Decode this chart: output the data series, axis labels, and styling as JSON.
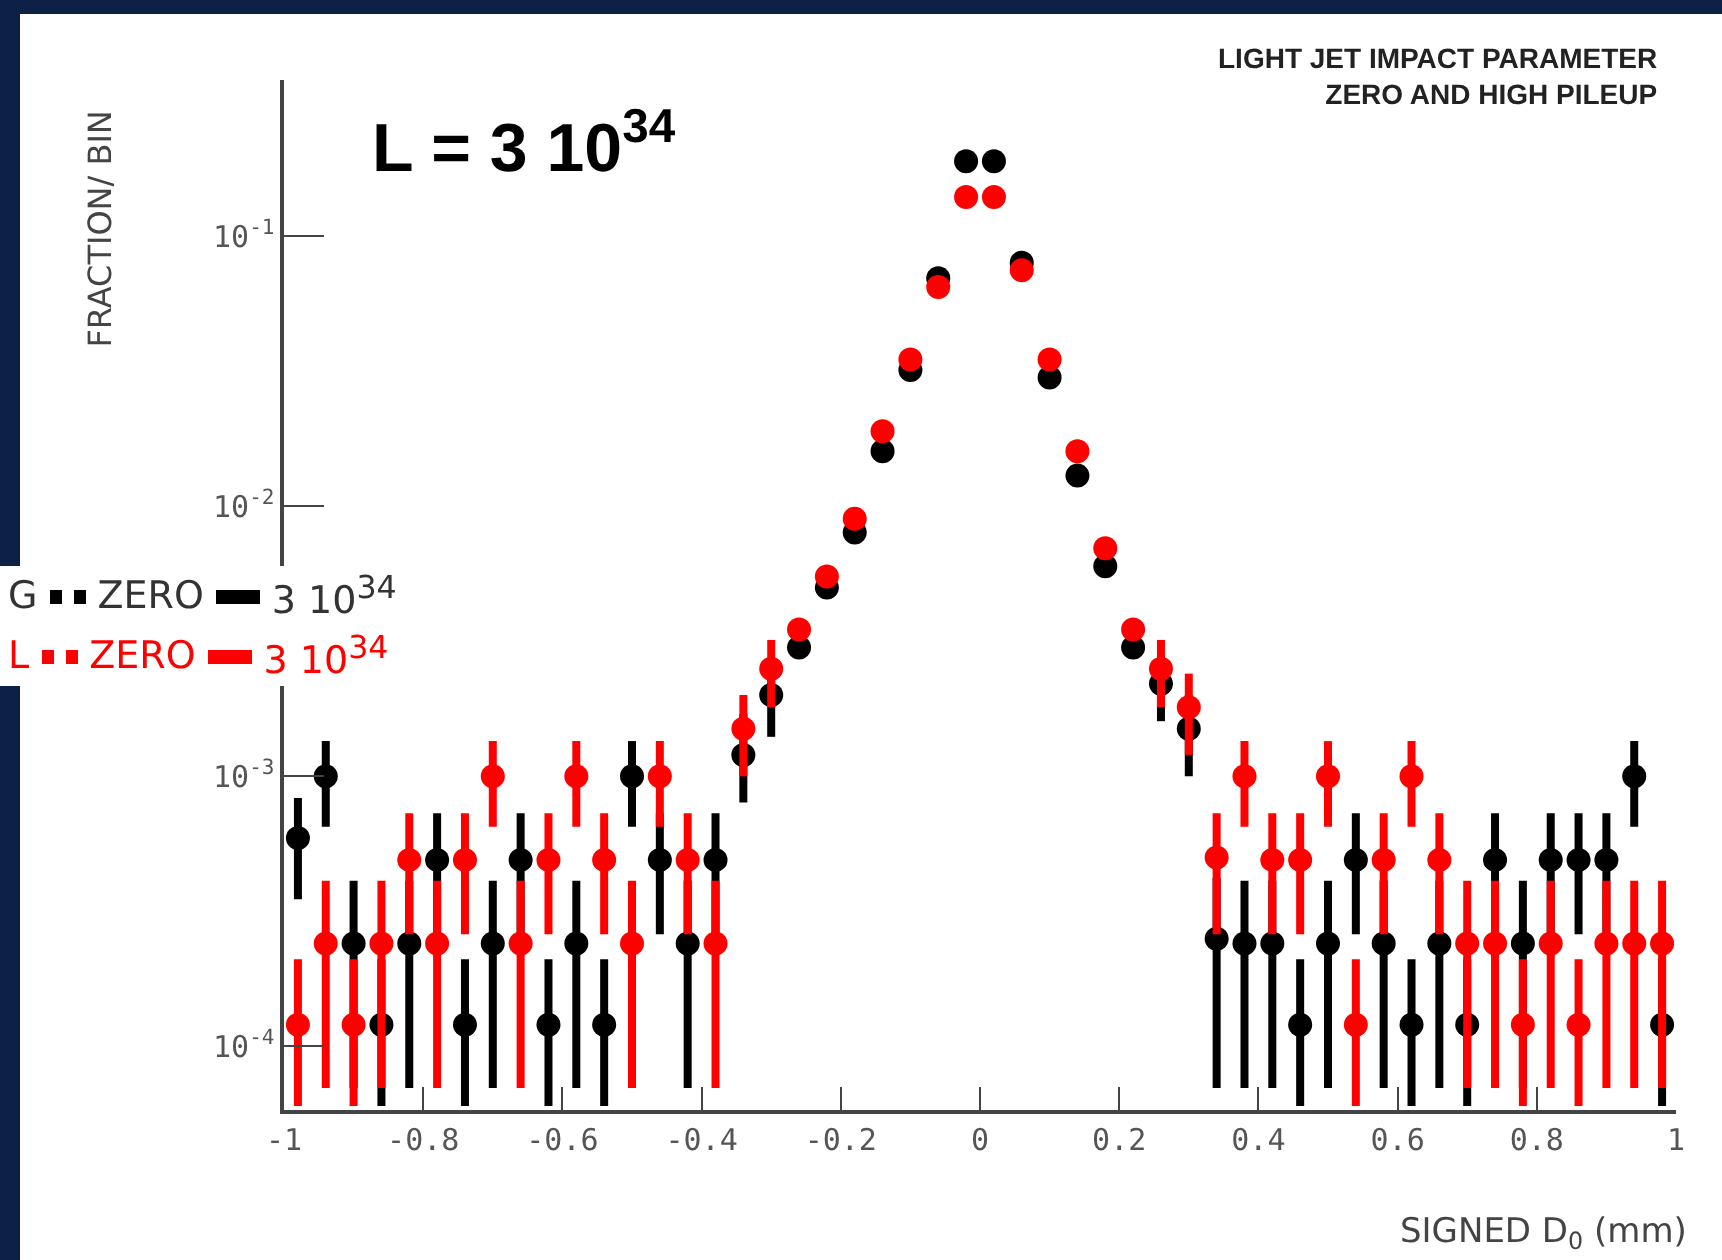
{
  "chart_data": {
    "type": "scatter",
    "title": "LIGHT JET IMPACT PARAMETER\nZERO AND HIGH PILEUP",
    "xlabel": "SIGNED D$_{0}$ (mm)",
    "ylabel": "FRACTION/ BIN",
    "annotations": [
      "L = 3 10$^{34}$",
      "G",
      "ZERO",
      "3 10$^{34}$",
      "L",
      "ZERO",
      "3 10$^{34}$"
    ],
    "x": [
      -0.98,
      -0.94,
      -0.9,
      -0.86,
      -0.82,
      -0.78,
      -0.74,
      -0.7,
      -0.66,
      -0.62,
      -0.58,
      -0.54,
      -0.5,
      -0.46,
      -0.42,
      -0.38,
      -0.34,
      -0.3,
      -0.26,
      -0.22,
      -0.18,
      -0.14,
      -0.1,
      -0.06,
      -0.02,
      0.02,
      0.06,
      0.1,
      0.14,
      0.18,
      0.22,
      0.26,
      0.3,
      0.34,
      0.38,
      0.42,
      0.46,
      0.5,
      0.54,
      0.58,
      0.62,
      0.66,
      0.7,
      0.74,
      0.78,
      0.82,
      0.86,
      0.9,
      0.94,
      0.98
    ],
    "series": [
      {
        "color": "#000000",
        "values": [
          0.00059,
          0.001,
          0.00024,
          0.00012,
          0.00024,
          0.00049,
          0.00012,
          0.00024,
          0.00049,
          0.00012,
          0.00024,
          0.00012,
          0.001,
          0.00049,
          0.00024,
          0.00049,
          0.0012,
          0.002,
          0.003,
          0.005,
          0.008,
          0.016,
          0.032,
          0.07,
          0.19,
          0.19,
          0.08,
          0.03,
          0.013,
          0.006,
          0.003,
          0.0022,
          0.0015,
          0.00025,
          0.00024,
          0.00024,
          0.00012,
          0.00024,
          0.00049,
          0.00024,
          0.00012,
          0.00024,
          0.00012,
          0.00049,
          0.00024,
          0.00049,
          0.00049,
          0.00049,
          0.001,
          0.00012
        ],
        "errors": [
          [
            0.00035,
            0.00083
          ],
          [
            0.00065,
            0.00135
          ],
          [
            7e-05,
            0.00041
          ],
          [
            6e-05,
            0.00021
          ],
          [
            7e-05,
            0.00041
          ],
          [
            0.00026,
            0.00073
          ],
          [
            6e-05,
            0.00021
          ],
          [
            7e-05,
            0.00041
          ],
          [
            0.00026,
            0.00073
          ],
          [
            6e-05,
            0.00021
          ],
          [
            7e-05,
            0.00041
          ],
          [
            6e-05,
            0.00021
          ],
          [
            0.00065,
            0.00135
          ],
          [
            0.00026,
            0.00073
          ],
          [
            7e-05,
            0.00041
          ],
          [
            0.00026,
            0.00073
          ],
          [
            0.0008,
            0.0017
          ],
          [
            0.0014,
            0.0026
          ],
          null,
          null,
          null,
          null,
          null,
          null,
          null,
          null,
          null,
          null,
          null,
          null,
          null,
          [
            0.0016,
            0.0028
          ],
          [
            0.001,
            0.002
          ],
          [
            7e-05,
            0.00042
          ],
          [
            7e-05,
            0.00041
          ],
          [
            7e-05,
            0.00041
          ],
          [
            6e-05,
            0.00021
          ],
          [
            7e-05,
            0.00041
          ],
          [
            0.00026,
            0.00073
          ],
          [
            7e-05,
            0.00041
          ],
          [
            6e-05,
            0.00021
          ],
          [
            7e-05,
            0.00041
          ],
          [
            6e-05,
            0.00021
          ],
          [
            0.00026,
            0.00073
          ],
          [
            7e-05,
            0.00041
          ],
          [
            0.00026,
            0.00073
          ],
          [
            0.00026,
            0.00073
          ],
          [
            0.00026,
            0.00073
          ],
          [
            0.00065,
            0.00135
          ],
          [
            6e-05,
            0.00021
          ]
        ]
      },
      {
        "color": "#ff0000",
        "values": [
          0.00012,
          0.00024,
          0.00012,
          0.00024,
          0.00049,
          0.00024,
          0.00049,
          0.001,
          0.00024,
          0.00049,
          0.001,
          0.00049,
          0.00024,
          0.001,
          0.00049,
          0.00024,
          0.0015,
          0.0025,
          0.0035,
          0.0055,
          0.009,
          0.019,
          0.035,
          0.065,
          0.14,
          0.14,
          0.075,
          0.035,
          0.016,
          0.007,
          0.0035,
          0.0025,
          0.0018,
          0.0005,
          0.001,
          0.00049,
          0.00049,
          0.001,
          0.00012,
          0.00049,
          0.001,
          0.00049,
          0.00024,
          0.00024,
          0.00012,
          0.00024,
          0.00012,
          0.00024,
          0.00024,
          0.00024
        ],
        "errors": [
          [
            6e-05,
            0.00021
          ],
          [
            7e-05,
            0.00041
          ],
          [
            6e-05,
            0.00021
          ],
          [
            7e-05,
            0.00041
          ],
          [
            0.00026,
            0.00073
          ],
          [
            7e-05,
            0.00041
          ],
          [
            0.00026,
            0.00073
          ],
          [
            0.00065,
            0.00135
          ],
          [
            7e-05,
            0.00041
          ],
          [
            0.00026,
            0.00073
          ],
          [
            0.00065,
            0.00135
          ],
          [
            0.00026,
            0.00073
          ],
          [
            7e-05,
            0.00041
          ],
          [
            0.00065,
            0.00135
          ],
          [
            0.00026,
            0.00073
          ],
          [
            7e-05,
            0.00041
          ],
          [
            0.001,
            0.002
          ],
          [
            0.0018,
            0.0032
          ],
          null,
          null,
          null,
          null,
          null,
          null,
          null,
          null,
          null,
          null,
          null,
          null,
          null,
          [
            0.0018,
            0.0032
          ],
          [
            0.0012,
            0.0024
          ],
          [
            0.00026,
            0.00073
          ],
          [
            0.00065,
            0.00135
          ],
          [
            0.00026,
            0.00073
          ],
          [
            0.00026,
            0.00073
          ],
          [
            0.00065,
            0.00135
          ],
          [
            6e-05,
            0.00021
          ],
          [
            0.00026,
            0.00073
          ],
          [
            0.00065,
            0.00135
          ],
          [
            0.00026,
            0.00073
          ],
          [
            7e-05,
            0.00041
          ],
          [
            7e-05,
            0.00041
          ],
          [
            6e-05,
            0.00021
          ],
          [
            7e-05,
            0.00041
          ],
          [
            6e-05,
            0.00021
          ],
          [
            7e-05,
            0.00041
          ],
          [
            7e-05,
            0.00041
          ],
          [
            7e-05,
            0.00041
          ]
        ]
      }
    ],
    "xlim": [
      -1,
      1
    ],
    "xticks": [
      -1,
      -0.8,
      -0.6,
      -0.4,
      -0.2,
      0,
      0.2,
      0.4,
      0.6,
      0.8,
      1
    ],
    "ylim": [
      5.8e-05,
      0.38
    ],
    "yticks": [
      {
        "value": 0.0001,
        "label": "10$^{-4}$"
      },
      {
        "value": 0.001,
        "label": "10$^{-3}$"
      },
      {
        "value": 0.01,
        "label": "10$^{-2}$"
      },
      {
        "value": 0.1,
        "label": "10$^{-1}$"
      }
    ],
    "log": "y",
    "grid": false,
    "marker": "circle"
  }
}
